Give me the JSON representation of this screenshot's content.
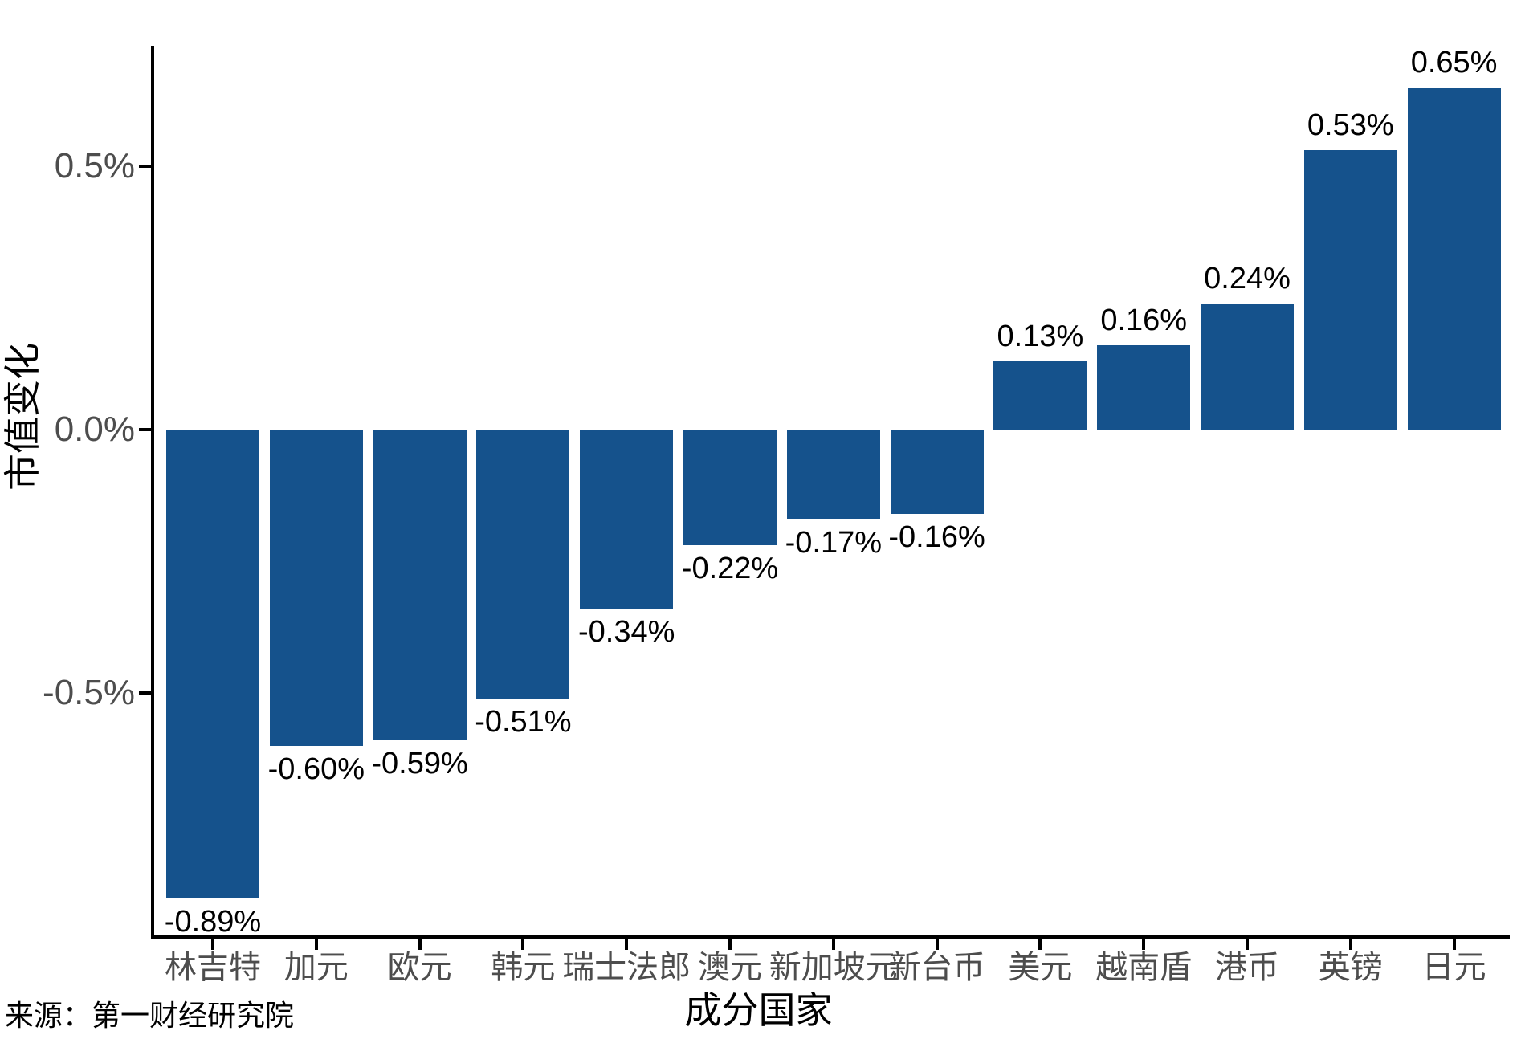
{
  "chart_data": {
    "type": "bar",
    "title": "",
    "xlabel": "成分国家",
    "ylabel": "市值变化",
    "categories": [
      "林吉特",
      "加元",
      "欧元",
      "韩元",
      "瑞士法郎",
      "澳元",
      "新加坡元",
      "新台币",
      "美元",
      "越南盾",
      "港币",
      "英镑",
      "日元"
    ],
    "values": [
      -0.89,
      -0.6,
      -0.59,
      -0.51,
      -0.34,
      -0.22,
      -0.17,
      -0.16,
      0.13,
      0.16,
      0.24,
      0.53,
      0.65
    ],
    "bar_labels": [
      "-0.89%",
      "-0.60%",
      "-0.59%",
      "-0.51%",
      "-0.34%",
      "-0.22%",
      "-0.17%",
      "-0.16%",
      "0.13%",
      "0.16%",
      "0.24%",
      "0.53%",
      "0.65%"
    ],
    "y_ticks": [
      {
        "label": "0.5%",
        "value": 0.5
      },
      {
        "label": "0.0%",
        "value": 0.0
      },
      {
        "label": "-0.5%",
        "value": -0.5
      }
    ],
    "ylim": [
      -0.97,
      0.73
    ],
    "bar_color": "#15528c",
    "grid": "off",
    "legend": "none"
  },
  "source_note": "来源：第一财经研究院"
}
